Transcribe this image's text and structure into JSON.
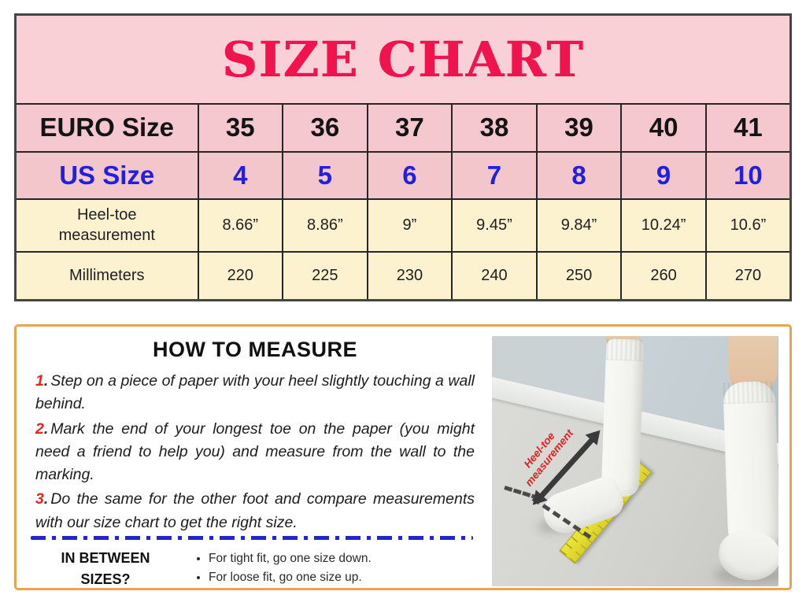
{
  "title": "SIZE CHART",
  "size_chart": {
    "rows": [
      {
        "label": "EURO Size",
        "values": [
          "35",
          "36",
          "37",
          "38",
          "39",
          "40",
          "41"
        ]
      },
      {
        "label": "US Size",
        "values": [
          "4",
          "5",
          "6",
          "7",
          "8",
          "9",
          "10"
        ]
      },
      {
        "label": "Heel-toe measurement",
        "values": [
          "8.66”",
          "8.86”",
          "9”",
          "9.45”",
          "9.84”",
          "10.24”",
          "10.6”"
        ]
      },
      {
        "label": "Millimeters",
        "values": [
          "220",
          "225",
          "230",
          "240",
          "250",
          "260",
          "270"
        ]
      }
    ]
  },
  "chart_data": {
    "type": "table",
    "title": "SIZE CHART",
    "columns": [
      "EURO Size",
      "35",
      "36",
      "37",
      "38",
      "39",
      "40",
      "41"
    ],
    "rows": [
      {
        "label": "EURO Size",
        "values": [
          35,
          36,
          37,
          38,
          39,
          40,
          41
        ]
      },
      {
        "label": "US Size",
        "values": [
          4,
          5,
          6,
          7,
          8,
          9,
          10
        ]
      },
      {
        "label": "Heel-toe measurement (inches)",
        "values": [
          8.66,
          8.86,
          9,
          9.45,
          9.84,
          10.24,
          10.6
        ]
      },
      {
        "label": "Millimeters",
        "values": [
          220,
          225,
          230,
          240,
          250,
          260,
          270
        ]
      }
    ]
  },
  "how_to_measure": {
    "heading": "HOW TO MEASURE",
    "step_separator": ".",
    "steps": [
      {
        "number": "1",
        "text": "Step on a piece of paper with your heel slightly touching a wall behind."
      },
      {
        "number": "2",
        "text": "Mark the end of your longest toe on the paper (you might need a friend to help you) and measure from the wall to the marking."
      },
      {
        "number": "3",
        "text": "Do the same for the other foot and compare measurements with our size chart to get the right size."
      }
    ],
    "in_between": {
      "label": "IN BETWEEN SIZES?",
      "bullets": [
        "For tight fit, go one size down.",
        "For loose fit, go one size up."
      ]
    }
  },
  "photo": {
    "annotation": "Heel-toe measurement"
  },
  "colors": {
    "title_red": "#f0134d",
    "us_size_blue": "#2220dd",
    "pink_header_bg": "#f5cad0",
    "cream_row_bg": "#fcf2d0",
    "panel_border_orange": "#e9a54d",
    "divider_blue": "#2525cb",
    "step_number_red": "#e32525",
    "ruler_yellow": "#e5dd2e"
  }
}
